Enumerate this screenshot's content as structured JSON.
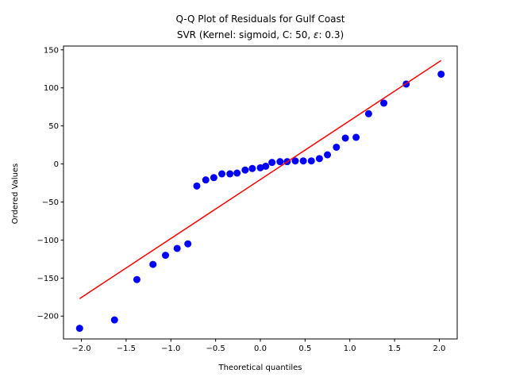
{
  "chart_data": {
    "type": "scatter",
    "title": "Q-Q Plot of Residuals for Gulf Coast",
    "subtitle_prefix": "SVR (Kernel: sigmoid, C: 50, ",
    "subtitle_epsilon": "ε",
    "subtitle_suffix": ": 0.3)",
    "xlabel": "Theoretical quantiles",
    "ylabel": "Ordered Values",
    "xlim": [
      -2.2,
      2.2
    ],
    "ylim": [
      -230,
      155
    ],
    "xticks": [
      -2.0,
      -1.5,
      -1.0,
      -0.5,
      0.0,
      0.5,
      1.0,
      1.5,
      2.0
    ],
    "xtick_labels": [
      "−2.0",
      "−1.5",
      "−1.0",
      "−0.5",
      "0.0",
      "0.5",
      "1.0",
      "1.5",
      "2.0"
    ],
    "yticks": [
      -200,
      -150,
      -100,
      -50,
      0,
      50,
      100,
      150
    ],
    "ytick_labels": [
      "−200",
      "−150",
      "−100",
      "−50",
      "0",
      "50",
      "100",
      "150"
    ],
    "grid": false,
    "points_color": "#0000ff",
    "line_color": "#ff0000",
    "fit_line": {
      "x": [
        -2.02,
        2.02
      ],
      "y": [
        -177,
        136
      ]
    },
    "points": [
      {
        "x": -2.02,
        "y": -216
      },
      {
        "x": -1.63,
        "y": -205
      },
      {
        "x": -1.38,
        "y": -152
      },
      {
        "x": -1.2,
        "y": -132
      },
      {
        "x": -1.06,
        "y": -120
      },
      {
        "x": -0.93,
        "y": -111
      },
      {
        "x": -0.81,
        "y": -105
      },
      {
        "x": -0.71,
        "y": -29
      },
      {
        "x": -0.61,
        "y": -21
      },
      {
        "x": -0.52,
        "y": -18
      },
      {
        "x": -0.43,
        "y": -13
      },
      {
        "x": -0.34,
        "y": -13
      },
      {
        "x": -0.26,
        "y": -12
      },
      {
        "x": -0.17,
        "y": -8
      },
      {
        "x": -0.09,
        "y": -6
      },
      {
        "x": 0.0,
        "y": -5
      },
      {
        "x": 0.06,
        "y": -3
      },
      {
        "x": 0.13,
        "y": 2
      },
      {
        "x": 0.22,
        "y": 3
      },
      {
        "x": 0.3,
        "y": 3
      },
      {
        "x": 0.39,
        "y": 4
      },
      {
        "x": 0.48,
        "y": 4
      },
      {
        "x": 0.57,
        "y": 4
      },
      {
        "x": 0.66,
        "y": 7
      },
      {
        "x": 0.75,
        "y": 12
      },
      {
        "x": 0.85,
        "y": 22
      },
      {
        "x": 0.95,
        "y": 34
      },
      {
        "x": 1.07,
        "y": 35
      },
      {
        "x": 1.21,
        "y": 66
      },
      {
        "x": 1.38,
        "y": 80
      },
      {
        "x": 1.63,
        "y": 105
      },
      {
        "x": 2.02,
        "y": 118
      }
    ]
  }
}
